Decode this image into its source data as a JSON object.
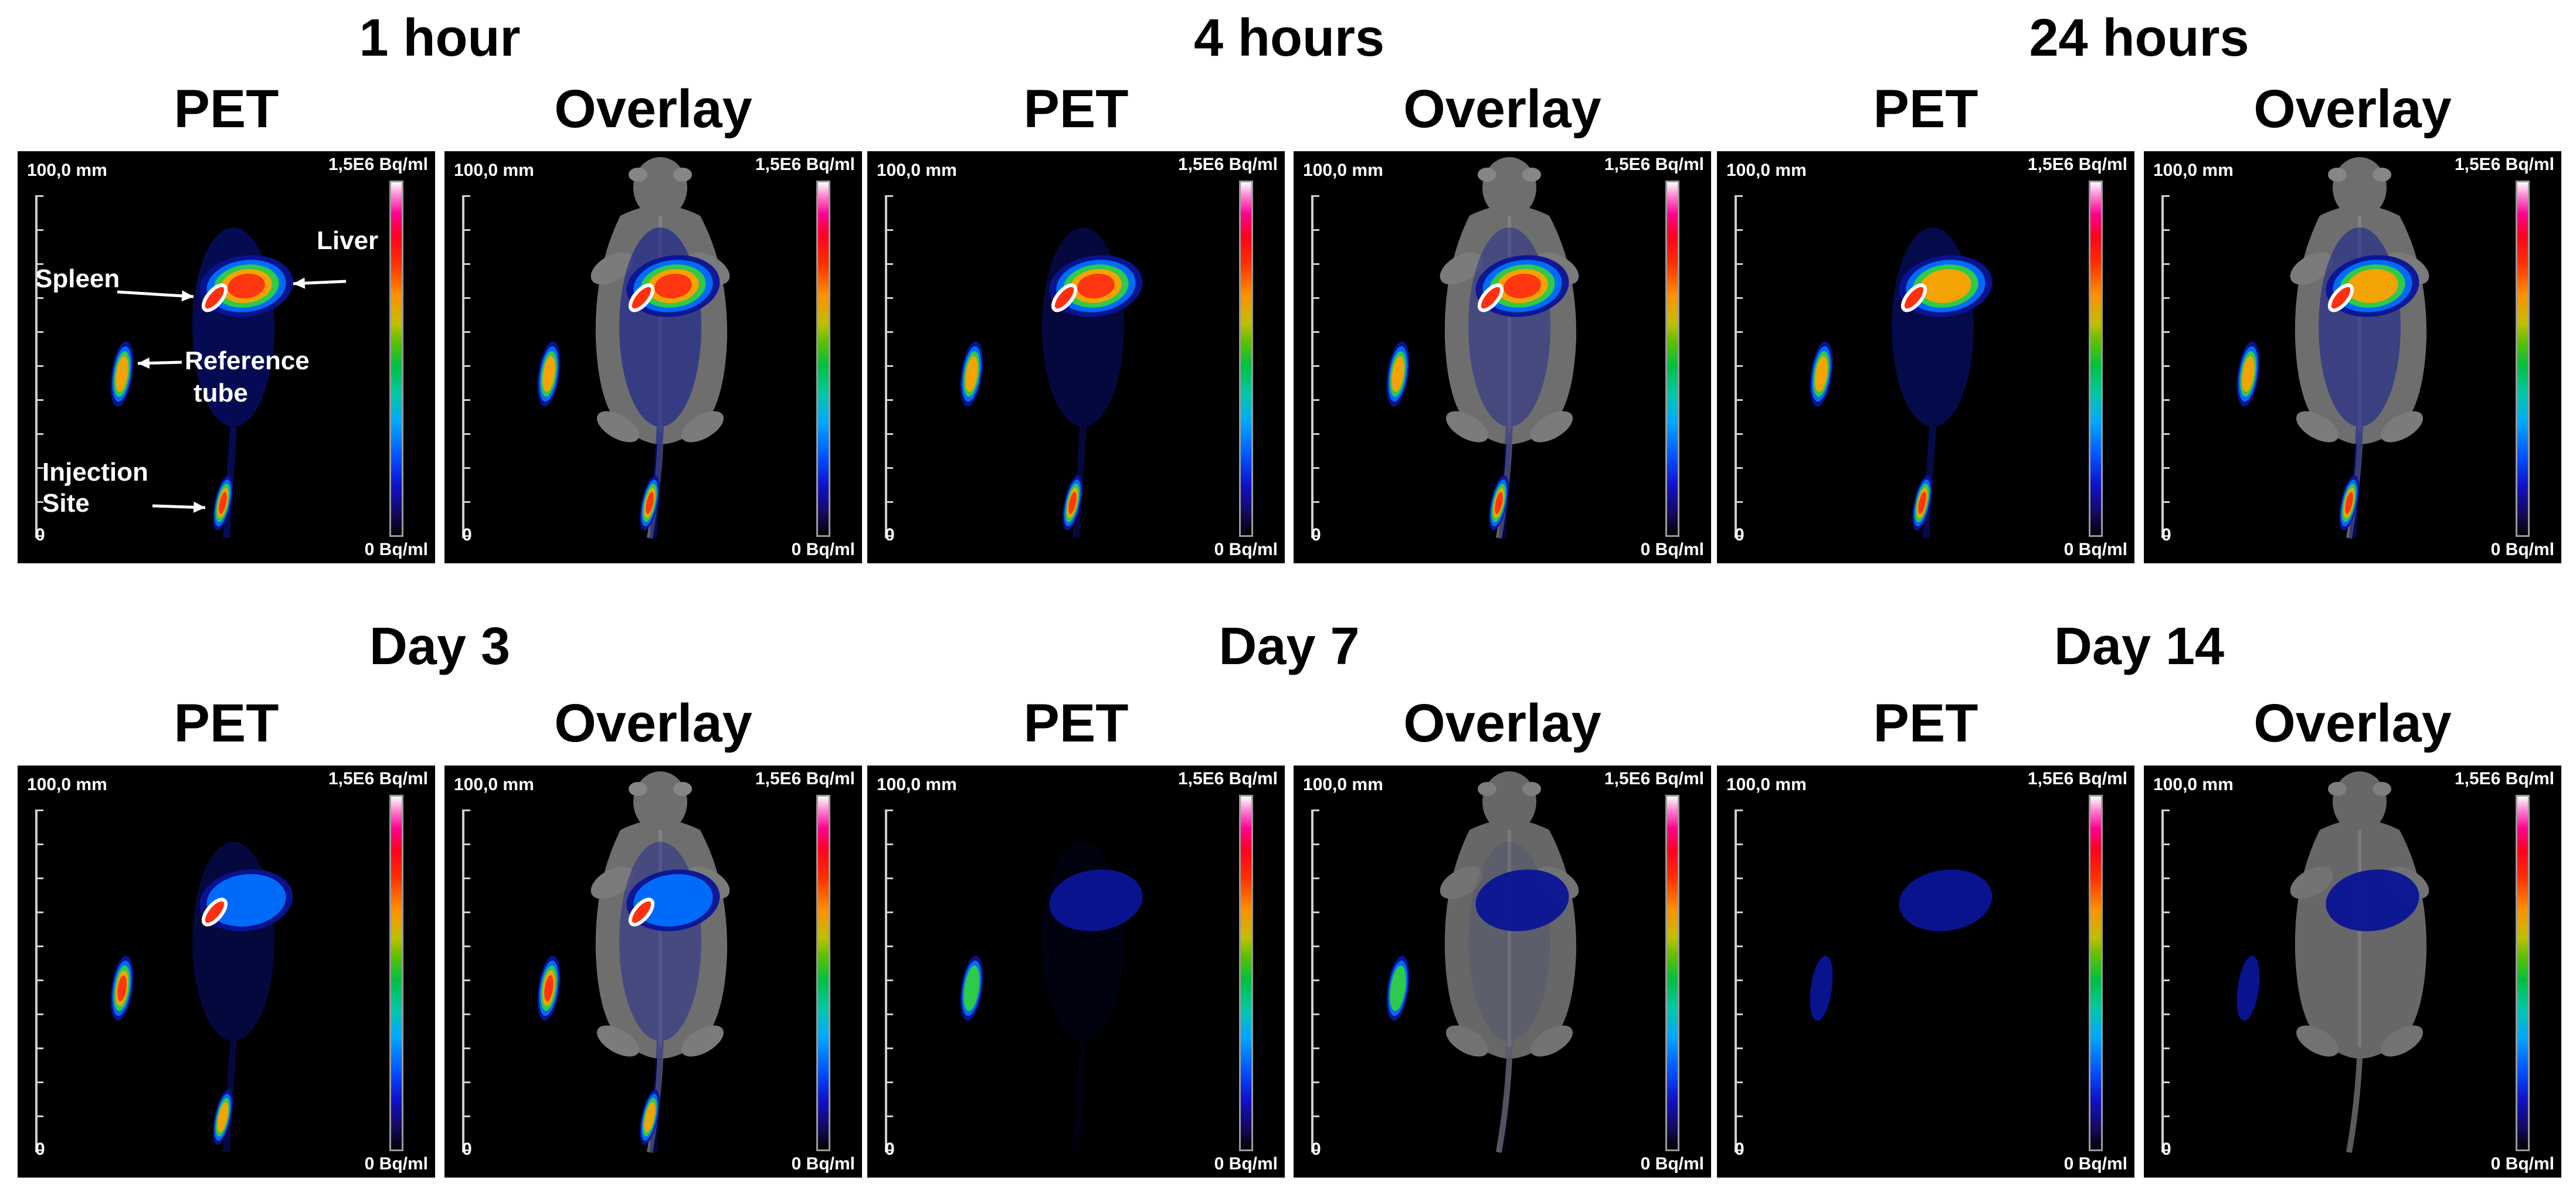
{
  "timepoints": [
    {
      "label": "1 hour"
    },
    {
      "label": "4 hours"
    },
    {
      "label": "24 hours"
    },
    {
      "label": "Day 3"
    },
    {
      "label": "Day 7"
    },
    {
      "label": "Day 14"
    }
  ],
  "modalities": {
    "pet": "PET",
    "overlay": "Overlay"
  },
  "scale": {
    "length": "100,0 mm",
    "origin": "0",
    "max": "1,5E6 Bq/ml",
    "min": "0 Bq/ml"
  },
  "annotations": {
    "spleen": "Spleen",
    "liver": "Liver",
    "reference_line1": "Reference",
    "reference_line2": "tube",
    "injection_line1": "Injection",
    "injection_line2": "Site"
  },
  "colors": {
    "background": "#000000",
    "hot_center": "#ff3010",
    "warm": "#ffa000",
    "mid": "#30d040",
    "cool": "#0070ff",
    "cold": "#0a1496",
    "spleen_outline": "#ffffff",
    "anatomy_gray": "#8a8a8a"
  }
}
